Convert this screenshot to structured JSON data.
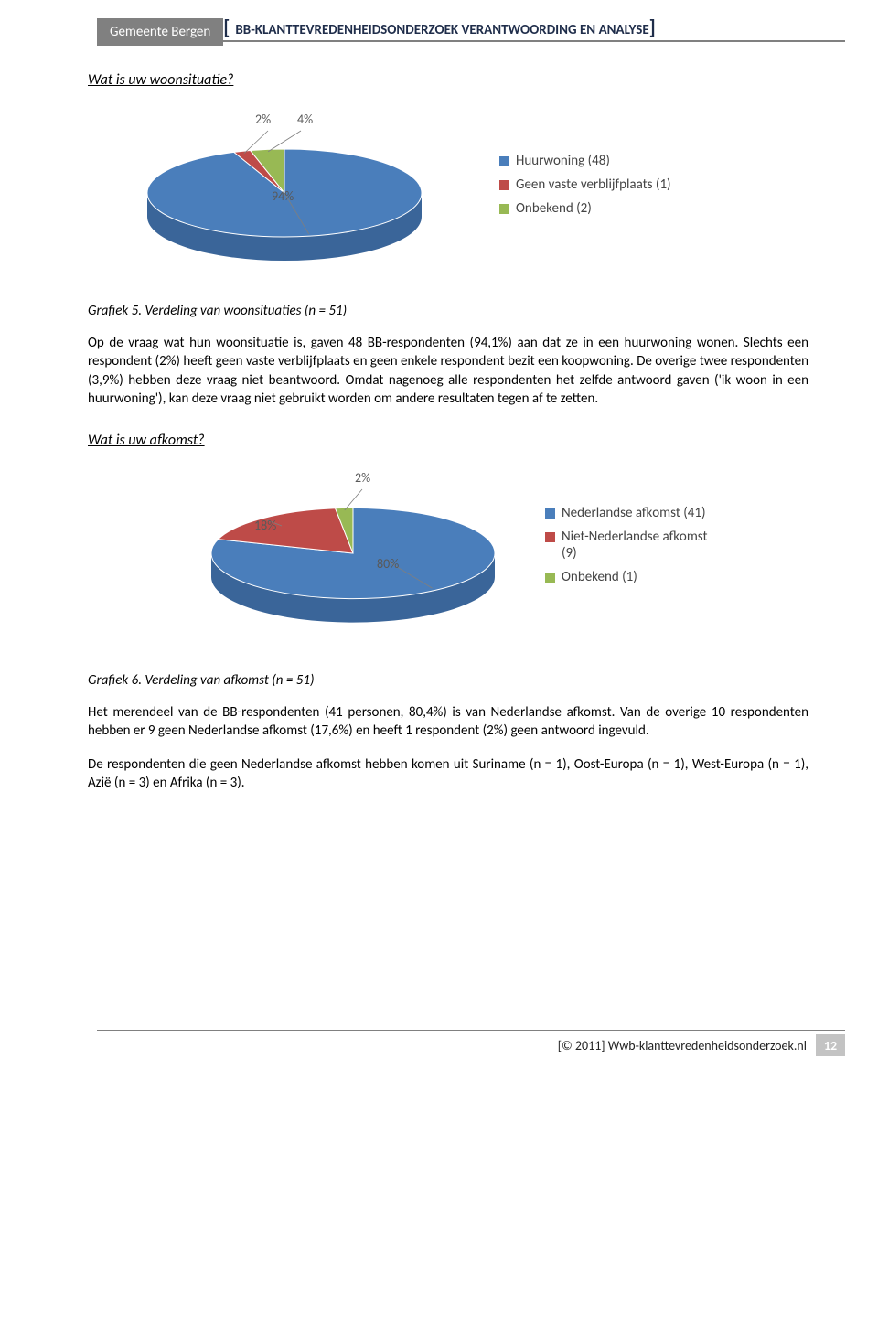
{
  "header": {
    "tab": "Gemeente Bergen",
    "title_rest": "BB-KLANTTEVREDENHEIDSONDERZOEK  VERANTWOORDING EN ANALYSE"
  },
  "q1": {
    "heading": "Wat is uw woonsituatie?",
    "chart": {
      "type": "pie",
      "slices": [
        {
          "label": "Huurwoning (48)",
          "pct": 94,
          "pct_label": "94%",
          "color": "#4a7ebb",
          "side": "#3a6599",
          "leader_to": "center"
        },
        {
          "label": "Geen vaste verblijfplaats (1)",
          "pct": 2,
          "pct_label": "2%",
          "color": "#be4b48",
          "side": "#9a3c3a"
        },
        {
          "label": "Onbekend (2)",
          "pct": 4,
          "pct_label": "4%",
          "color": "#98b954",
          "side": "#7a9643"
        }
      ],
      "bg": "#ffffff",
      "label_color": "#595959",
      "label_fontsize": 14,
      "legend_fontsize": 15,
      "tilt_ry_ratio": 0.32,
      "depth": 26
    },
    "caption": "Grafiek 5. Verdeling van woonsituaties (n = 51)",
    "p1": "Op de vraag wat hun woonsituatie is, gaven 48 BB-respondenten (94,1%) aan dat ze in een huurwoning wonen. Slechts een respondent (2%) heeft geen vaste verblijfplaats en geen enkele respondent bezit een koopwoning. De overige twee respondenten (3,9%) hebben deze vraag niet beantwoord. Omdat nagenoeg alle respondenten het zelfde antwoord gaven ('ik woon in een huurwoning'), kan deze vraag niet gebruikt worden om andere resultaten tegen af te zetten."
  },
  "q2": {
    "heading": "Wat is uw afkomst?",
    "chart": {
      "type": "pie",
      "slices": [
        {
          "label": "Nederlandse afkomst (41)",
          "pct": 80,
          "pct_label": "80%",
          "color": "#4a7ebb",
          "side": "#3a6599"
        },
        {
          "label": "Niet-Nederlandse afkomst (9)",
          "pct": 18,
          "pct_label": "18%",
          "color": "#be4b48",
          "side": "#9a3c3a"
        },
        {
          "label": "Onbekend (1)",
          "pct": 2,
          "pct_label": "2%",
          "color": "#98b954",
          "side": "#7a9643"
        }
      ],
      "bg": "#ffffff",
      "label_color": "#595959",
      "label_fontsize": 14,
      "legend_fontsize": 15,
      "tilt_ry_ratio": 0.32,
      "depth": 26
    },
    "caption": "Grafiek 6. Verdeling van afkomst (n = 51)",
    "p1": "Het merendeel van de BB-respondenten (41 personen, 80,4%) is van Nederlandse afkomst. Van de overige 10 respondenten hebben er 9 geen Nederlandse afkomst (17,6%) en heeft 1 respondent (2%) geen antwoord ingevuld.",
    "p2": "De respondenten die geen Nederlandse afkomst hebben komen uit Suriname (n = 1), Oost-Europa (n = 1), West-Europa (n = 1), Azië (n = 3) en Afrika (n = 3)."
  },
  "footer": {
    "text": "[© 2011] Wwb-klanttevredenheidsonderzoek.nl",
    "page": "12"
  }
}
